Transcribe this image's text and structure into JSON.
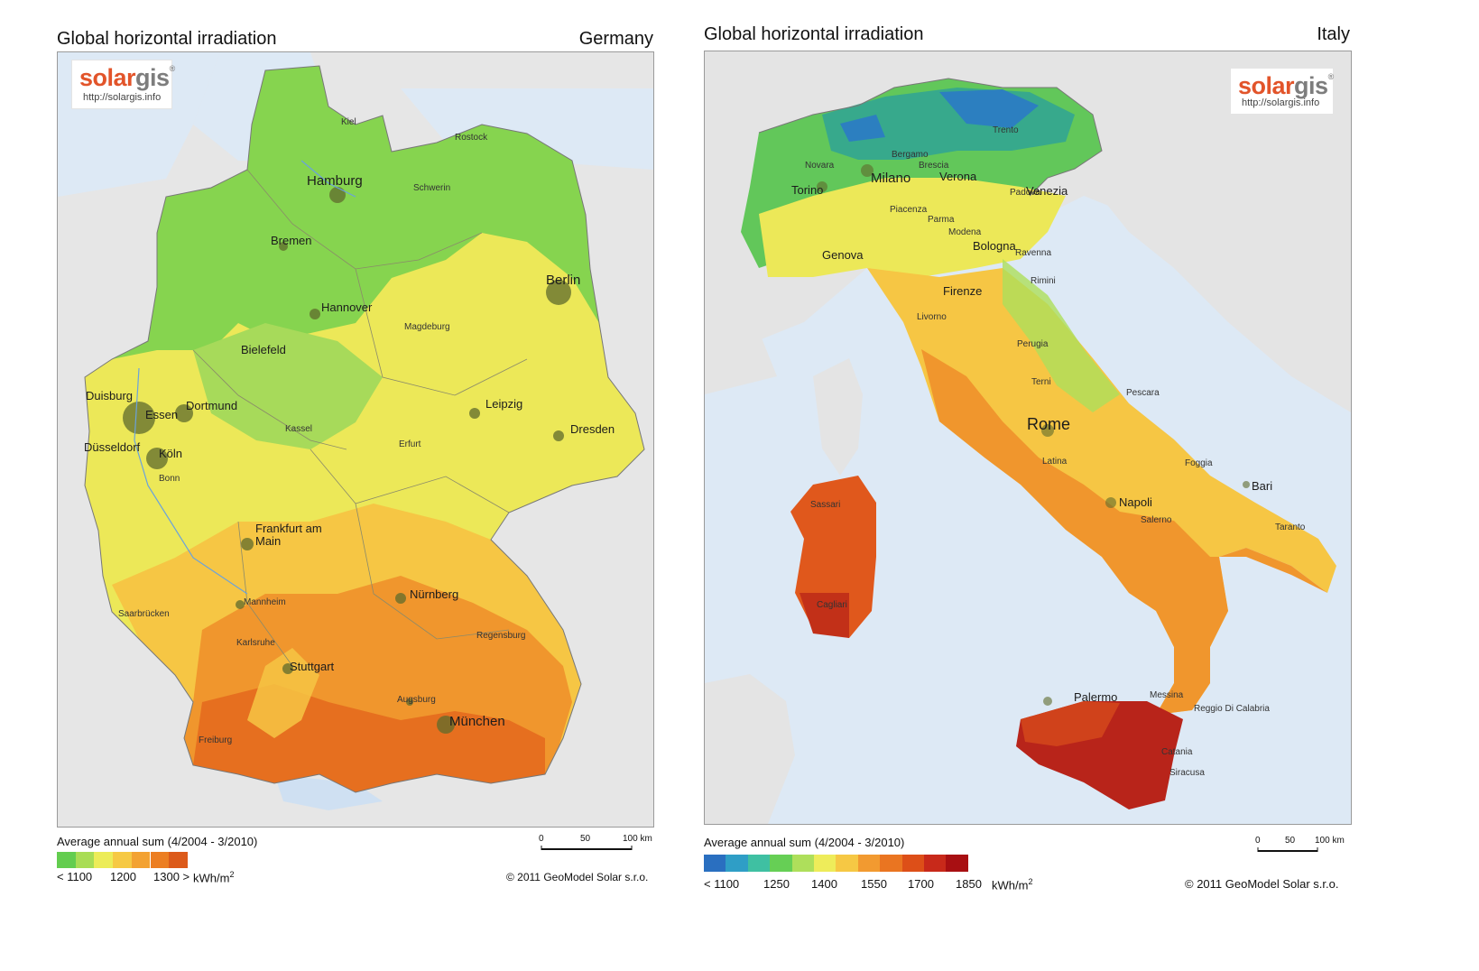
{
  "germany": {
    "title": "Global horizontal irradiation",
    "country": "Germany",
    "logo": {
      "brand_a": "solar",
      "brand_b": "gis",
      "mark": "®",
      "url": "http://solargis.info"
    },
    "cities": {
      "kiel": "Kiel",
      "rostock": "Rostock",
      "hamburg": "Hamburg",
      "schwerin": "Schwerin",
      "bremen": "Bremen",
      "berlin": "Berlin",
      "hannover": "Hannover",
      "magdeburg": "Magdeburg",
      "bielefeld": "Bielefeld",
      "duisburg": "Duisburg",
      "dortmund": "Dortmund",
      "essen": "Essen",
      "leipzig": "Leipzig",
      "kassel": "Kassel",
      "dresden": "Dresden",
      "dusseldorf": "Düsseldorf",
      "koln": "Köln",
      "erfurt": "Erfurt",
      "bonn": "Bonn",
      "frankfurt": "Frankfurt am Main",
      "nurnberg": "Nürnberg",
      "mannheim": "Mannheim",
      "saarbrucken": "Saarbrücken",
      "regensburg": "Regensburg",
      "karlsruhe": "Karlsruhe",
      "stuttgart": "Stuttgart",
      "augsburg": "Augsburg",
      "munchen": "München",
      "freiburg": "Freiburg"
    },
    "footer": {
      "avg_label": "Average annual sum (4/2004 - 3/2010)",
      "ticks": [
        "< 1100",
        "1200",
        "1300 >"
      ],
      "unit": "kWh/m",
      "unit_sup": "2",
      "scale": [
        "0",
        "50",
        "100 km"
      ],
      "copyright": "© 2011 GeoModel Solar s.r.o."
    },
    "legend_colors": [
      "#63cd4f",
      "#a9dd55",
      "#ecec58",
      "#f6c944",
      "#f3a232",
      "#ec7e22",
      "#dc5a1a"
    ]
  },
  "italy": {
    "title": "Global horizontal irradiation",
    "country": "Italy",
    "logo": {
      "brand_a": "solar",
      "brand_b": "gis",
      "mark": "®",
      "url": "http://solargis.info"
    },
    "cities": {
      "trento": "Trento",
      "bergamo": "Bergamo",
      "brescia": "Brescia",
      "novara": "Novara",
      "milano": "Milano",
      "verona": "Verona",
      "torino": "Torino",
      "padova": "Padova",
      "venezia": "Venezia",
      "piacenza": "Piacenza",
      "parma": "Parma",
      "modena": "Modena",
      "bologna": "Bologna",
      "genova": "Genova",
      "ravenna": "Ravenna",
      "rimini": "Rimini",
      "firenze": "Firenze",
      "livorno": "Livorno",
      "perugia": "Perugia",
      "terni": "Terni",
      "pescara": "Pescara",
      "rome": "Rome",
      "latina": "Latina",
      "foggia": "Foggia",
      "bari": "Bari",
      "sassari": "Sassari",
      "napoli": "Napoli",
      "salerno": "Salerno",
      "taranto": "Taranto",
      "cagliari": "Cagliari",
      "palermo": "Palermo",
      "messina": "Messina",
      "reggio": "Reggio Di Calabria",
      "catania": "Catania",
      "siracusa": "Siracusa"
    },
    "footer": {
      "avg_label": "Average annual sum (4/2004 - 3/2010)",
      "ticks": [
        "< 1100",
        "1250",
        "1400",
        "1550",
        "1700",
        "1850"
      ],
      "unit": "kWh/m",
      "unit_sup": "2",
      "scale": [
        "0",
        "50",
        "100 km"
      ],
      "copyright": "© 2011 GeoModel Solar s.r.o."
    },
    "legend_colors": [
      "#2a6fc0",
      "#2f9ec6",
      "#3fc0a2",
      "#66cf55",
      "#aedf5b",
      "#eeec5a",
      "#f6c844",
      "#f29a30",
      "#ea7521",
      "#dd4f18",
      "#c8291a",
      "#a80f12"
    ]
  }
}
